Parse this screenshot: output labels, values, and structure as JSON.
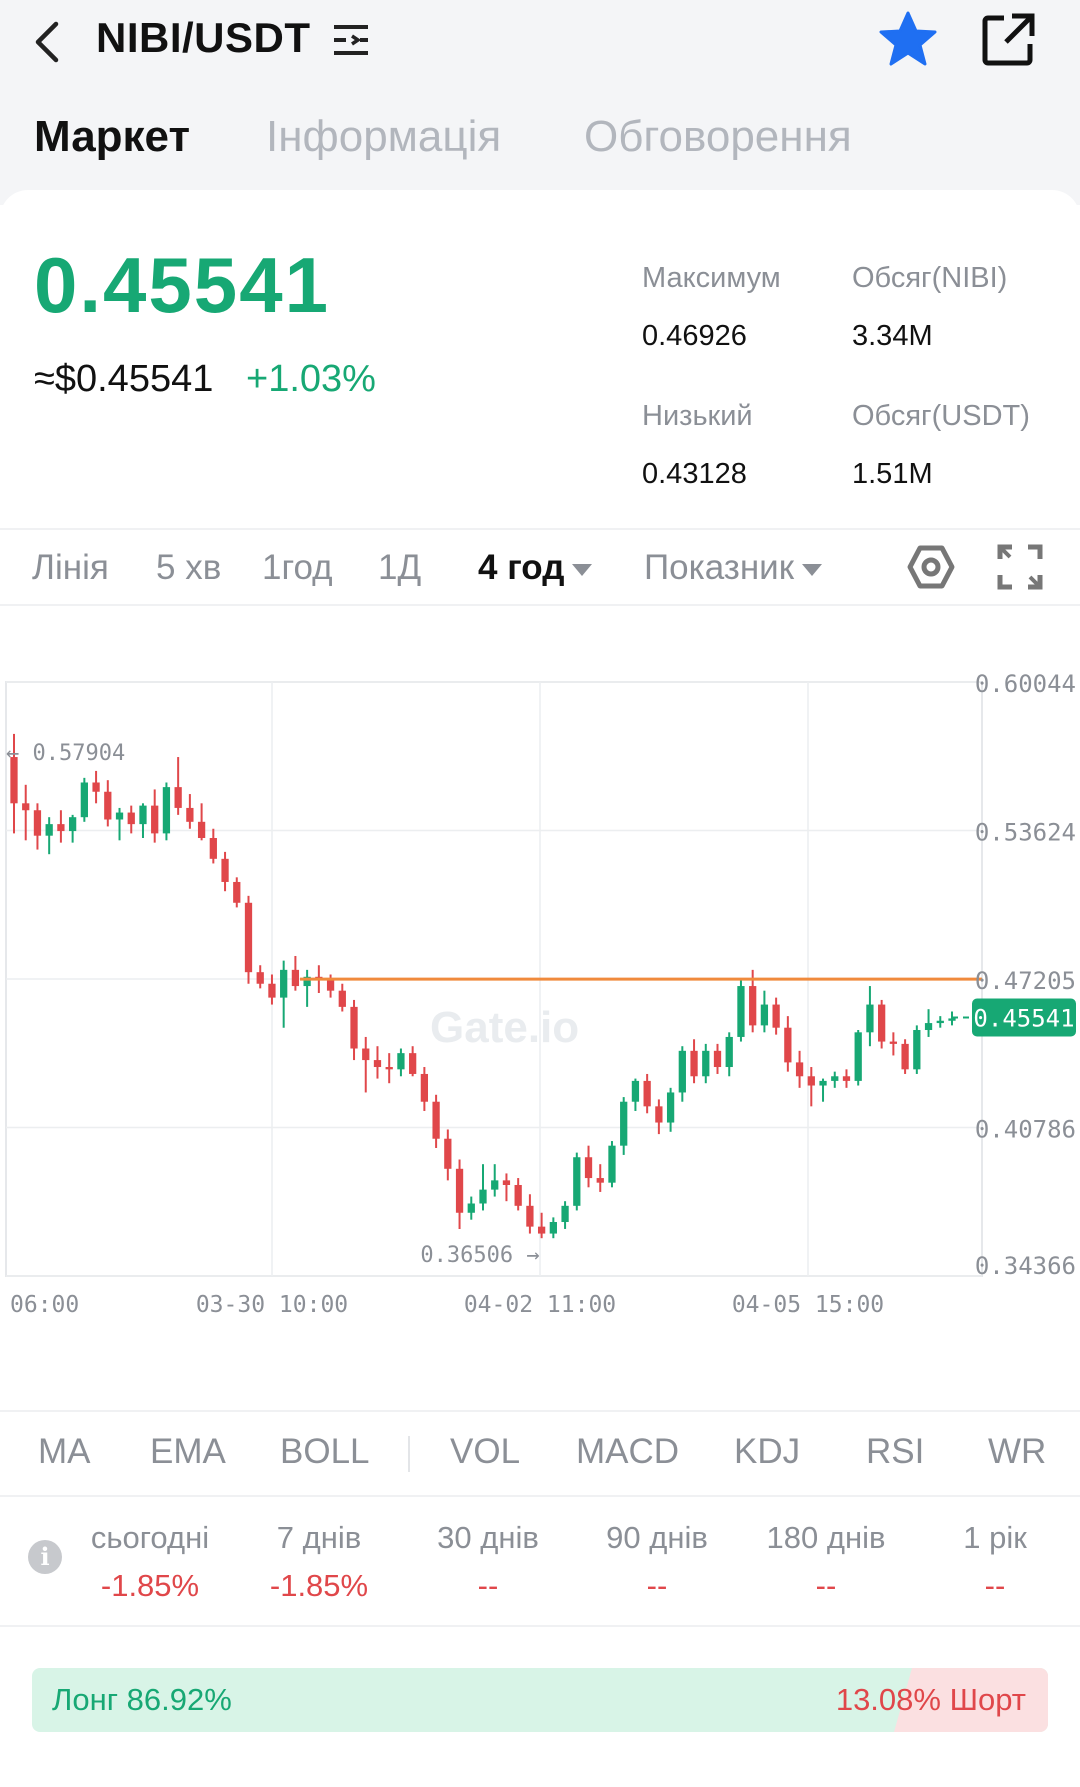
{
  "header": {
    "pair": "NIBI/USDT",
    "icons": [
      "back-arrow-icon",
      "pair-menu-icon",
      "favorite-star-icon",
      "share-external-icon"
    ],
    "star_color": "#1f6ff2"
  },
  "tabs": [
    {
      "label": "Маркет",
      "active": true
    },
    {
      "label": "Інформація",
      "active": false
    },
    {
      "label": "Обговорення",
      "active": false
    }
  ],
  "price": {
    "last": "0.45541",
    "approx_usd": "≈$0.45541",
    "change": "+1.03%",
    "color_up": "#17a874",
    "color_down": "#e0474a"
  },
  "stats": {
    "high_label": "Максимум",
    "high": "0.46926",
    "low_label": "Низький",
    "low": "0.43128",
    "vol_base_label": "Обсяг(NIBI)",
    "vol_base": "3.34M",
    "vol_quote_label": "Обсяг(USDT)",
    "vol_quote": "1.51M"
  },
  "timeframes": {
    "items": [
      "Лінія",
      "5 хв",
      "1год",
      "1Д"
    ],
    "active": "4 год",
    "indicator": "Показник"
  },
  "chart_data": {
    "type": "candlestick",
    "interval": "4 год",
    "ylim": [
      0.34366,
      0.60044
    ],
    "y_ticks": [
      "0.60044",
      "0.53624",
      "0.47205",
      "0.40786",
      "0.34366"
    ],
    "x_ticks": [
      "06:00",
      "03-30 10:00",
      "04-02 11:00",
      "04-05 15:00"
    ],
    "current_price": "0.45541",
    "high_marker": "0.57904",
    "low_marker": "0.36506",
    "horizontal_line": 0.472,
    "watermark": "Gate.io",
    "candles": [
      [
        0.568,
        0.578,
        0.535,
        0.548
      ],
      [
        0.548,
        0.556,
        0.532,
        0.545
      ],
      [
        0.545,
        0.548,
        0.528,
        0.534
      ],
      [
        0.534,
        0.542,
        0.526,
        0.539
      ],
      [
        0.539,
        0.545,
        0.531,
        0.536
      ],
      [
        0.536,
        0.543,
        0.531,
        0.542
      ],
      [
        0.542,
        0.559,
        0.54,
        0.557
      ],
      [
        0.557,
        0.562,
        0.548,
        0.553
      ],
      [
        0.553,
        0.558,
        0.538,
        0.541
      ],
      [
        0.541,
        0.546,
        0.532,
        0.544
      ],
      [
        0.544,
        0.547,
        0.535,
        0.539
      ],
      [
        0.539,
        0.548,
        0.533,
        0.547
      ],
      [
        0.547,
        0.554,
        0.531,
        0.535
      ],
      [
        0.535,
        0.557,
        0.532,
        0.555
      ],
      [
        0.555,
        0.568,
        0.543,
        0.546
      ],
      [
        0.546,
        0.552,
        0.537,
        0.54
      ],
      [
        0.54,
        0.548,
        0.532,
        0.533
      ],
      [
        0.533,
        0.537,
        0.522,
        0.524
      ],
      [
        0.524,
        0.527,
        0.51,
        0.514
      ],
      [
        0.514,
        0.516,
        0.503,
        0.505
      ],
      [
        0.505,
        0.508,
        0.47,
        0.475
      ],
      [
        0.475,
        0.478,
        0.468,
        0.47
      ],
      [
        0.47,
        0.474,
        0.461,
        0.464
      ],
      [
        0.464,
        0.48,
        0.451,
        0.476
      ],
      [
        0.476,
        0.482,
        0.467,
        0.469
      ],
      [
        0.469,
        0.476,
        0.46,
        0.473
      ],
      [
        0.473,
        0.478,
        0.466,
        0.472
      ],
      [
        0.472,
        0.474,
        0.464,
        0.467
      ],
      [
        0.467,
        0.47,
        0.458,
        0.46
      ],
      [
        0.46,
        0.463,
        0.437,
        0.442
      ],
      [
        0.442,
        0.447,
        0.423,
        0.437
      ],
      [
        0.437,
        0.443,
        0.429,
        0.434
      ],
      [
        0.434,
        0.44,
        0.427,
        0.433
      ],
      [
        0.433,
        0.442,
        0.43,
        0.44
      ],
      [
        0.44,
        0.443,
        0.43,
        0.431
      ],
      [
        0.431,
        0.434,
        0.415,
        0.419
      ],
      [
        0.419,
        0.422,
        0.399,
        0.403
      ],
      [
        0.403,
        0.407,
        0.385,
        0.39
      ],
      [
        0.39,
        0.394,
        0.364,
        0.371
      ],
      [
        0.371,
        0.378,
        0.368,
        0.375
      ],
      [
        0.375,
        0.392,
        0.372,
        0.381
      ],
      [
        0.381,
        0.392,
        0.378,
        0.385
      ],
      [
        0.385,
        0.388,
        0.376,
        0.383
      ],
      [
        0.383,
        0.386,
        0.372,
        0.374
      ],
      [
        0.374,
        0.379,
        0.362,
        0.365
      ],
      [
        0.365,
        0.371,
        0.36,
        0.362
      ],
      [
        0.362,
        0.369,
        0.36,
        0.367
      ],
      [
        0.367,
        0.376,
        0.364,
        0.374
      ],
      [
        0.374,
        0.397,
        0.372,
        0.395
      ],
      [
        0.395,
        0.4,
        0.382,
        0.386
      ],
      [
        0.386,
        0.392,
        0.38,
        0.384
      ],
      [
        0.384,
        0.402,
        0.382,
        0.4
      ],
      [
        0.4,
        0.421,
        0.396,
        0.419
      ],
      [
        0.419,
        0.429,
        0.415,
        0.428
      ],
      [
        0.428,
        0.431,
        0.414,
        0.417
      ],
      [
        0.417,
        0.42,
        0.405,
        0.41
      ],
      [
        0.41,
        0.425,
        0.406,
        0.423
      ],
      [
        0.423,
        0.443,
        0.419,
        0.441
      ],
      [
        0.441,
        0.446,
        0.427,
        0.43
      ],
      [
        0.43,
        0.444,
        0.427,
        0.441
      ],
      [
        0.441,
        0.444,
        0.431,
        0.434
      ],
      [
        0.434,
        0.449,
        0.43,
        0.447
      ],
      [
        0.447,
        0.472,
        0.445,
        0.469
      ],
      [
        0.469,
        0.476,
        0.449,
        0.452
      ],
      [
        0.452,
        0.467,
        0.449,
        0.461
      ],
      [
        0.461,
        0.464,
        0.448,
        0.451
      ],
      [
        0.451,
        0.456,
        0.432,
        0.436
      ],
      [
        0.436,
        0.441,
        0.425,
        0.43
      ],
      [
        0.43,
        0.434,
        0.417,
        0.426
      ],
      [
        0.426,
        0.429,
        0.419,
        0.428
      ],
      [
        0.428,
        0.432,
        0.425,
        0.43
      ],
      [
        0.43,
        0.433,
        0.425,
        0.428
      ],
      [
        0.428,
        0.45,
        0.426,
        0.449
      ],
      [
        0.449,
        0.469,
        0.443,
        0.461
      ],
      [
        0.461,
        0.463,
        0.442,
        0.445
      ],
      [
        0.445,
        0.449,
        0.439,
        0.444
      ],
      [
        0.444,
        0.446,
        0.431,
        0.433
      ],
      [
        0.433,
        0.452,
        0.431,
        0.45
      ],
      [
        0.45,
        0.459,
        0.447,
        0.453
      ],
      [
        0.453,
        0.456,
        0.451,
        0.454
      ],
      [
        0.454,
        0.458,
        0.452,
        0.455
      ]
    ]
  },
  "indicators": [
    "MA",
    "EMA",
    "BOLL",
    "VOL",
    "MACD",
    "KDJ",
    "RSI",
    "WR"
  ],
  "performance": [
    {
      "label": "сьогодні",
      "value": "-1.85%"
    },
    {
      "label": "7 днів",
      "value": "-1.85%"
    },
    {
      "label": "30 днів",
      "value": "--"
    },
    {
      "label": "90 днів",
      "value": "--"
    },
    {
      "label": "180 днів",
      "value": "--"
    },
    {
      "label": "1 рік",
      "value": "--"
    }
  ],
  "long_short": {
    "long": "Лонг 86.92%",
    "short": "13.08% Шорт",
    "long_ratio": 0.8692
  }
}
